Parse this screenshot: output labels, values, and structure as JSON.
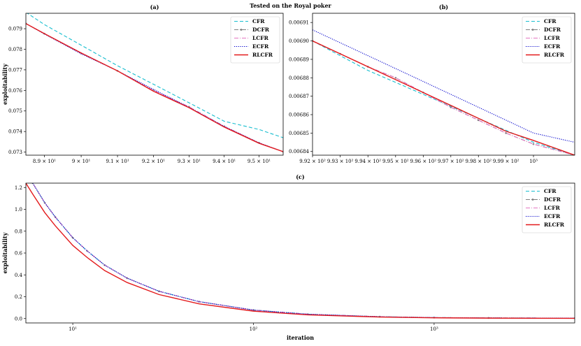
{
  "suptitle": "Tested on the Royal poker",
  "colors": {
    "CFR": "#17becf",
    "DCFR": "#7f7f7f",
    "LCFR": "#e377c2",
    "ECFR": "#0000cc",
    "RLCFR": "#e31a1c"
  },
  "chart_data": [
    {
      "type": "line",
      "title": "(a)",
      "xlabel": "",
      "ylabel": "exploitability",
      "xscale": "log",
      "xlim": [
        88.5,
        95.7
      ],
      "ylim": [
        0.07285,
        0.07975
      ],
      "x_ticks": [
        {
          "v": 89,
          "label": "8.9 × 10¹"
        },
        {
          "v": 90,
          "label": "9 × 10¹"
        },
        {
          "v": 91,
          "label": "9.1 × 10¹"
        },
        {
          "v": 92,
          "label": "9.2 × 10¹"
        },
        {
          "v": 93,
          "label": "9.3 × 10¹"
        },
        {
          "v": 94,
          "label": "9.4 × 10¹"
        },
        {
          "v": 95,
          "label": "9.5 × 10¹"
        }
      ],
      "y_ticks": [
        {
          "v": 0.073,
          "label": "0.073"
        },
        {
          "v": 0.074,
          "label": "0.074"
        },
        {
          "v": 0.075,
          "label": "0.075"
        },
        {
          "v": 0.076,
          "label": "0.076"
        },
        {
          "v": 0.077,
          "label": "0.077"
        },
        {
          "v": 0.078,
          "label": "0.078"
        },
        {
          "v": 0.079,
          "label": "0.079"
        }
      ],
      "legend_position": "top-right",
      "series": [
        {
          "name": "CFR",
          "style": "dashed",
          "x": [
            88.5,
            89,
            90,
            91,
            92,
            93,
            94,
            95,
            95.7
          ],
          "y": [
            0.0798,
            0.0792,
            0.0782,
            0.0772,
            0.0763,
            0.0754,
            0.0745,
            0.0741,
            0.0737
          ]
        },
        {
          "name": "DCFR",
          "style": "dashdot-marker",
          "x": [
            88.5,
            89,
            90,
            91,
            92,
            93,
            94,
            95,
            95.7
          ],
          "y": [
            0.07925,
            0.07876,
            0.0778,
            0.07695,
            0.076,
            0.0752,
            0.07425,
            0.07345,
            0.07302
          ]
        },
        {
          "name": "LCFR",
          "style": "dashdot",
          "x": [
            88.5,
            89,
            90,
            91,
            92,
            93,
            94,
            95,
            95.7
          ],
          "y": [
            0.07925,
            0.07876,
            0.0778,
            0.07695,
            0.076,
            0.0752,
            0.07425,
            0.07345,
            0.07302
          ]
        },
        {
          "name": "ECFR",
          "style": "dotted",
          "x": [
            88.5,
            89,
            90,
            91,
            92,
            93,
            94,
            95,
            95.7
          ],
          "y": [
            0.07925,
            0.07874,
            0.07778,
            0.07695,
            0.07605,
            0.07518,
            0.07425,
            0.07345,
            0.07302
          ]
        },
        {
          "name": "RLCFR",
          "style": "solid",
          "x": [
            88.5,
            89,
            90,
            91,
            92,
            93,
            94,
            95,
            95.7
          ],
          "y": [
            0.07925,
            0.07876,
            0.07782,
            0.07695,
            0.07596,
            0.07516,
            0.07422,
            0.07343,
            0.07302
          ]
        }
      ]
    },
    {
      "type": "line",
      "title": "(b)",
      "xlabel": "",
      "ylabel": "",
      "xscale": "log",
      "xlim": [
        992,
        1001.5
      ],
      "ylim": [
        0.006838,
        0.006915
      ],
      "x_ticks": [
        {
          "v": 992,
          "label": "9.92 × 10²"
        },
        {
          "v": 993,
          "label": "9.93 × 10²"
        },
        {
          "v": 994,
          "label": "9.94 × 10²"
        },
        {
          "v": 995,
          "label": "9.95 × 10²"
        },
        {
          "v": 996,
          "label": "9.96 × 10²"
        },
        {
          "v": 997,
          "label": "9.97 × 10²"
        },
        {
          "v": 998,
          "label": "9.98 × 10²"
        },
        {
          "v": 999,
          "label": "9.99 × 10²"
        },
        {
          "v": 1000,
          "label": "10³"
        }
      ],
      "y_ticks": [
        {
          "v": 0.00684,
          "label": "0.00684"
        },
        {
          "v": 0.00685,
          "label": "0.00685"
        },
        {
          "v": 0.00686,
          "label": "0.00686"
        },
        {
          "v": 0.00687,
          "label": "0.00687"
        },
        {
          "v": 0.00688,
          "label": "0.00688"
        },
        {
          "v": 0.00689,
          "label": "0.00689"
        },
        {
          "v": 0.0069,
          "label": "0.00690"
        },
        {
          "v": 0.00691,
          "label": "0.00691"
        }
      ],
      "legend_position": "top-right",
      "series": [
        {
          "name": "CFR",
          "style": "dashed",
          "x": [
            992,
            994,
            996,
            998,
            1000,
            1001.5
          ],
          "y": [
            0.0069,
            0.006884,
            0.006871,
            0.006858,
            0.006845,
            0.006838
          ]
        },
        {
          "name": "DCFR",
          "style": "dashdot-marker",
          "x": [
            992,
            993,
            994,
            995,
            996,
            997,
            998,
            999,
            1000,
            1001.5
          ],
          "y": [
            0.0069,
            0.006893,
            0.006886,
            0.00688,
            0.006872,
            0.006864,
            0.006857,
            0.00685,
            0.006844,
            0.006838
          ]
        },
        {
          "name": "LCFR",
          "style": "dashdot",
          "x": [
            992,
            993,
            994,
            995,
            996,
            997,
            998,
            999,
            1000,
            1001.5
          ],
          "y": [
            0.0069,
            0.006893,
            0.006886,
            0.00688,
            0.006872,
            0.006864,
            0.006857,
            0.00685,
            0.006844,
            0.006838
          ]
        },
        {
          "name": "ECFR",
          "style": "dotted",
          "x": [
            992,
            993,
            994,
            995,
            996,
            997,
            998,
            999,
            1000,
            1001.5
          ],
          "y": [
            0.006906,
            0.006899,
            0.006892,
            0.006885,
            0.006878,
            0.006871,
            0.006864,
            0.006857,
            0.00685,
            0.006845
          ]
        },
        {
          "name": "RLCFR",
          "style": "solid",
          "x": [
            992,
            993,
            994,
            995,
            996,
            997,
            998,
            999,
            1000,
            1001.5
          ],
          "y": [
            0.0069,
            0.006893,
            0.006886,
            0.006879,
            0.006872,
            0.006865,
            0.006858,
            0.006851,
            0.006846,
            0.006838
          ]
        }
      ]
    },
    {
      "type": "line",
      "title": "(c)",
      "xlabel": "iteration",
      "ylabel": "exploitability",
      "xscale": "log",
      "xlim": [
        5.5,
        6000
      ],
      "ylim": [
        -0.04,
        1.24
      ],
      "x_ticks": [
        {
          "v": 10,
          "label": "10¹"
        },
        {
          "v": 100,
          "label": "10²"
        },
        {
          "v": 1000,
          "label": "10³"
        }
      ],
      "y_ticks": [
        {
          "v": 0,
          "label": "0.0"
        },
        {
          "v": 0.2,
          "label": "0.2"
        },
        {
          "v": 0.4,
          "label": "0.4"
        },
        {
          "v": 0.6,
          "label": "0.6"
        },
        {
          "v": 0.8,
          "label": "0.8"
        },
        {
          "v": 1.0,
          "label": "1.0"
        },
        {
          "v": 1.2,
          "label": "1.2"
        }
      ],
      "legend_position": "top-right",
      "series": [
        {
          "name": "CFR",
          "style": "dashed",
          "x": [
            5.5,
            6,
            7,
            8,
            10,
            12,
            15,
            20,
            30,
            50,
            100,
            200,
            500,
            1000,
            2000,
            6000
          ],
          "y": [
            1.35,
            1.24,
            1.06,
            0.93,
            0.74,
            0.62,
            0.49,
            0.37,
            0.25,
            0.155,
            0.078,
            0.04,
            0.017,
            0.009,
            0.006,
            0.004
          ]
        },
        {
          "name": "DCFR",
          "style": "dashdot-marker",
          "x": [
            5.5,
            6,
            7,
            8,
            10,
            12,
            15,
            20,
            30,
            50,
            100,
            200,
            500,
            1000,
            2000,
            6000
          ],
          "y": [
            1.35,
            1.24,
            1.06,
            0.93,
            0.74,
            0.62,
            0.49,
            0.37,
            0.25,
            0.155,
            0.078,
            0.04,
            0.017,
            0.009,
            0.006,
            0.004
          ]
        },
        {
          "name": "LCFR",
          "style": "dashdot",
          "x": [
            5.5,
            6,
            7,
            8,
            10,
            12,
            15,
            20,
            30,
            50,
            100,
            200,
            500,
            1000,
            2000,
            6000
          ],
          "y": [
            1.35,
            1.24,
            1.06,
            0.93,
            0.74,
            0.62,
            0.49,
            0.37,
            0.25,
            0.155,
            0.078,
            0.04,
            0.017,
            0.009,
            0.006,
            0.004
          ]
        },
        {
          "name": "ECFR",
          "style": "dotted",
          "x": [
            5.5,
            6,
            7,
            8,
            10,
            12,
            15,
            20,
            30,
            50,
            100,
            200,
            500,
            1000,
            2000,
            6000
          ],
          "y": [
            1.35,
            1.24,
            1.06,
            0.93,
            0.74,
            0.62,
            0.49,
            0.37,
            0.25,
            0.155,
            0.078,
            0.04,
            0.017,
            0.009,
            0.006,
            0.004
          ]
        },
        {
          "name": "RLCFR",
          "style": "solid",
          "x": [
            5.5,
            6,
            7,
            8,
            10,
            12,
            15,
            20,
            30,
            50,
            100,
            200,
            500,
            1000,
            2000,
            6000
          ],
          "y": [
            1.24,
            1.14,
            0.97,
            0.85,
            0.67,
            0.56,
            0.44,
            0.33,
            0.22,
            0.135,
            0.068,
            0.034,
            0.014,
            0.007,
            0.004,
            0.002
          ]
        }
      ]
    }
  ]
}
